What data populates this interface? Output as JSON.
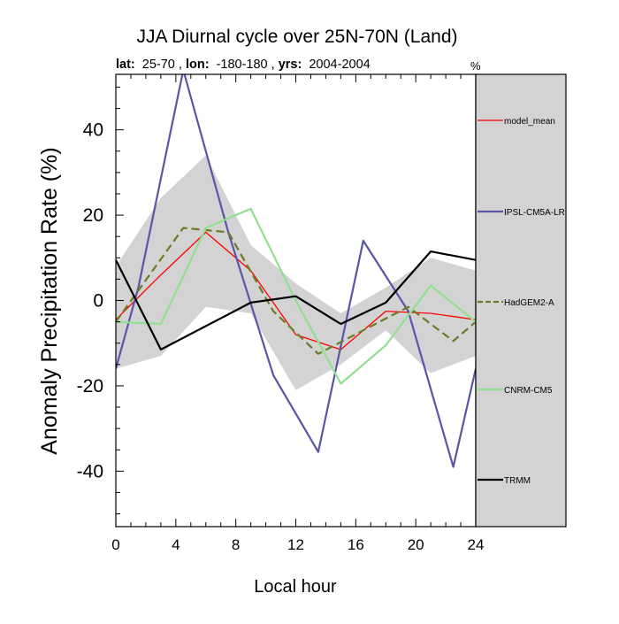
{
  "title": "JJA Diurnal cycle over 25N-70N (Land)",
  "subtitle": {
    "lat_label": "lat:",
    "lat_value": "25-70",
    "lon_label": "lon:",
    "lon_value": "-180-180",
    "yrs_label": "yrs:",
    "yrs_value": "2004-2004"
  },
  "legend_unit": "%",
  "chart_data": {
    "type": "line",
    "xlabel": "Local hour",
    "ylabel": "Anomaly Precipitation Rate (%)",
    "xlim": [
      0,
      24
    ],
    "ylim": [
      -53,
      53
    ],
    "x_ticks": [
      0,
      4,
      8,
      12,
      16,
      20,
      24
    ],
    "y_ticks": [
      -40,
      -20,
      0,
      20,
      40
    ],
    "grid": false,
    "legend_position": "right",
    "spread_band": {
      "color": "#d3d3d3",
      "x": [
        0,
        3,
        6,
        9,
        12,
        15,
        18,
        21,
        24
      ],
      "upper": [
        8,
        24,
        34,
        13,
        4,
        -3,
        3,
        10,
        7
      ],
      "lower": [
        -16,
        -13,
        -1.5,
        -3,
        -21,
        -15,
        -7,
        -17,
        -13
      ]
    },
    "series": [
      {
        "name": "model_mean",
        "color": "#ff0000",
        "dash": "solid",
        "width": 1.3,
        "x": [
          0,
          3,
          6,
          9,
          12,
          15,
          18,
          21,
          24
        ],
        "values": [
          -4.5,
          6,
          16,
          7,
          -8,
          -11.5,
          -2.5,
          -3,
          -4.5
        ]
      },
      {
        "name": "IPSL-CM5A-LR",
        "color": "#5b55a8",
        "dash": "solid",
        "width": 2.2,
        "x": [
          0,
          1.5,
          4.5,
          7.5,
          10.5,
          13.5,
          16.5,
          19.5,
          22.5,
          24
        ],
        "values": [
          -16,
          3,
          54,
          16,
          -17.5,
          -35.5,
          14,
          -2.5,
          -39,
          -16
        ]
      },
      {
        "name": "HadGEM2-A",
        "color": "#6b7b26",
        "dash": "dashed",
        "width": 2.2,
        "x": [
          0,
          4.5,
          7.5,
          10.5,
          13.5,
          16.5,
          19.5,
          22.5,
          24
        ],
        "values": [
          -5,
          17,
          16,
          -2.5,
          -12.5,
          -7,
          -1.5,
          -9.5,
          -5
        ]
      },
      {
        "name": "CNRM-CM5",
        "color": "#90e090",
        "dash": "solid",
        "width": 2.2,
        "x": [
          0,
          3,
          6,
          9,
          12,
          15,
          18,
          21,
          24
        ],
        "values": [
          -5,
          -5.5,
          17,
          21.5,
          0,
          -19.5,
          -10.5,
          3.5,
          -5
        ]
      },
      {
        "name": "TRMM",
        "color": "#000000",
        "dash": "solid",
        "width": 2.2,
        "x": [
          0,
          3,
          6,
          9,
          12,
          15,
          18,
          21,
          24
        ],
        "values": [
          9.5,
          -11.5,
          -6,
          -0.5,
          1,
          -5.5,
          -0.5,
          11.5,
          9.5
        ]
      }
    ]
  }
}
